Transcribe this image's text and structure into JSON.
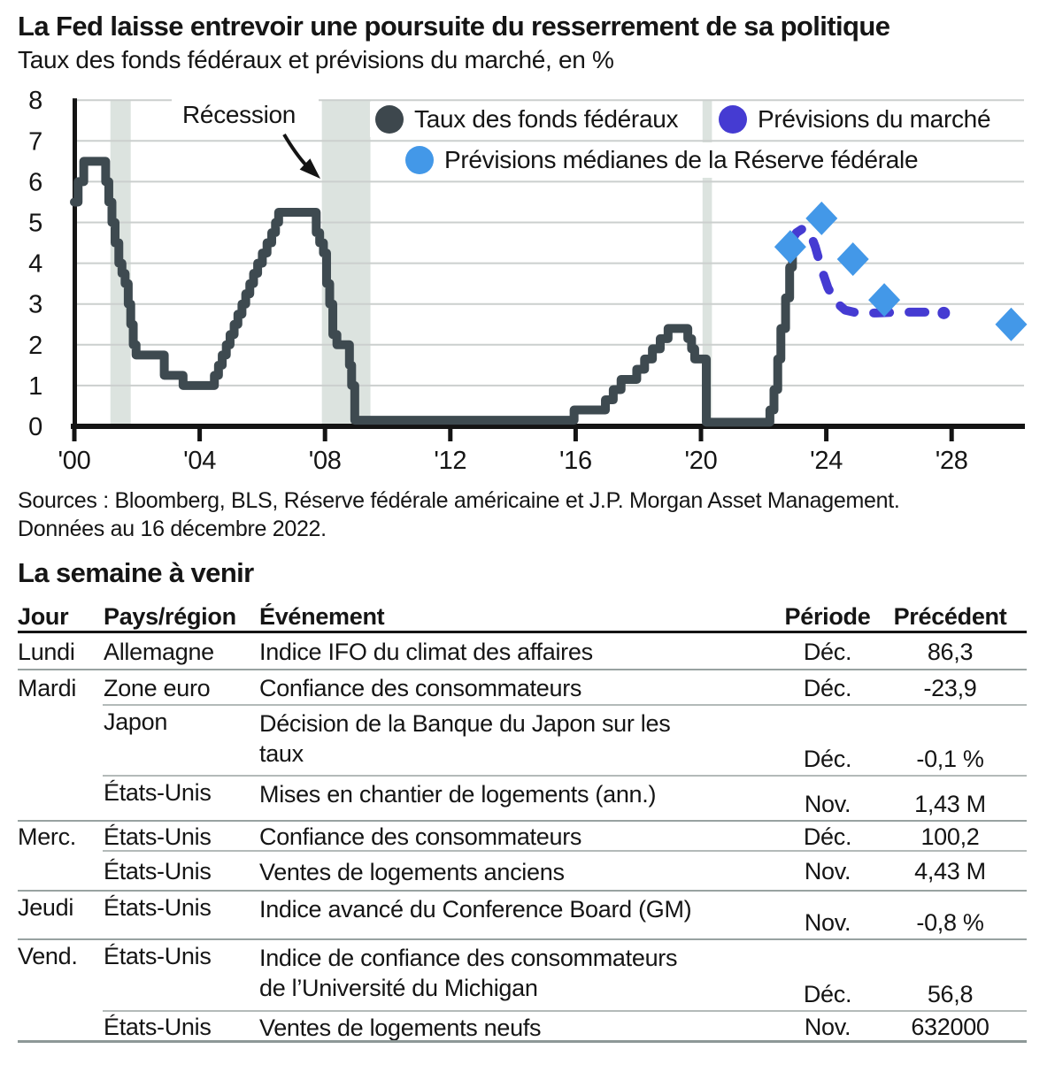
{
  "header": {
    "title": "La Fed laisse entrevoir une poursuite du resserrement de sa politique",
    "subtitle": "Taux des fonds fédéraux et prévisions du marché, en %"
  },
  "chart_data": {
    "type": "line",
    "title": "Taux des fonds fédéraux et prévisions du marché, en %",
    "ylabel": "%",
    "ylim": [
      0,
      8
    ],
    "yticks": [
      0,
      1,
      2,
      3,
      4,
      5,
      6,
      7,
      8
    ],
    "xticks": [
      2000,
      2004,
      2008,
      2012,
      2016,
      2020,
      2024,
      2028
    ],
    "xtick_labels": [
      "'00",
      "'04",
      "'08",
      "'12",
      "'16",
      "'20",
      "'24",
      "'28"
    ],
    "xlim": [
      2000,
      2030.5
    ],
    "grid": true,
    "legend_position": "top",
    "recession_label": "Récession",
    "recession_color": "#dce3df",
    "recessions": [
      [
        2001.15,
        2001.8
      ],
      [
        2007.9,
        2009.45
      ],
      [
        2020.05,
        2020.35
      ]
    ],
    "series": [
      {
        "name": "Taux des fonds fédéraux",
        "type": "step",
        "color": "#3e4a50",
        "points": [
          [
            2000.0,
            5.5
          ],
          [
            2000.12,
            6.0
          ],
          [
            2000.3,
            6.5
          ],
          [
            2001.0,
            6.0
          ],
          [
            2001.1,
            5.5
          ],
          [
            2001.2,
            5.0
          ],
          [
            2001.3,
            4.5
          ],
          [
            2001.42,
            4.0
          ],
          [
            2001.52,
            3.75
          ],
          [
            2001.62,
            3.5
          ],
          [
            2001.72,
            3.0
          ],
          [
            2001.8,
            2.5
          ],
          [
            2001.88,
            2.0
          ],
          [
            2001.97,
            1.75
          ],
          [
            2002.87,
            1.25
          ],
          [
            2003.47,
            1.0
          ],
          [
            2004.47,
            1.25
          ],
          [
            2004.6,
            1.5
          ],
          [
            2004.72,
            1.75
          ],
          [
            2004.85,
            2.0
          ],
          [
            2004.97,
            2.25
          ],
          [
            2005.1,
            2.5
          ],
          [
            2005.22,
            2.75
          ],
          [
            2005.35,
            3.0
          ],
          [
            2005.47,
            3.25
          ],
          [
            2005.6,
            3.5
          ],
          [
            2005.72,
            3.75
          ],
          [
            2005.85,
            4.0
          ],
          [
            2006.0,
            4.25
          ],
          [
            2006.15,
            4.5
          ],
          [
            2006.3,
            4.75
          ],
          [
            2006.42,
            5.0
          ],
          [
            2006.52,
            5.25
          ],
          [
            2007.72,
            4.75
          ],
          [
            2007.83,
            4.5
          ],
          [
            2007.95,
            4.25
          ],
          [
            2008.05,
            3.5
          ],
          [
            2008.15,
            3.0
          ],
          [
            2008.25,
            2.25
          ],
          [
            2008.38,
            2.0
          ],
          [
            2008.78,
            1.5
          ],
          [
            2008.85,
            1.0
          ],
          [
            2008.95,
            0.15
          ],
          [
            2015.95,
            0.4
          ],
          [
            2016.95,
            0.65
          ],
          [
            2017.2,
            0.9
          ],
          [
            2017.45,
            1.15
          ],
          [
            2017.95,
            1.4
          ],
          [
            2018.2,
            1.65
          ],
          [
            2018.45,
            1.9
          ],
          [
            2018.7,
            2.15
          ],
          [
            2018.95,
            2.4
          ],
          [
            2019.58,
            2.15
          ],
          [
            2019.7,
            1.9
          ],
          [
            2019.8,
            1.65
          ],
          [
            2020.17,
            0.1
          ],
          [
            2022.2,
            0.4
          ],
          [
            2022.33,
            0.9
          ],
          [
            2022.45,
            1.65
          ],
          [
            2022.55,
            2.4
          ],
          [
            2022.7,
            3.15
          ],
          [
            2022.83,
            3.9
          ],
          [
            2022.92,
            4.4
          ]
        ]
      },
      {
        "name": "Prévisions du marché",
        "type": "dashed",
        "color": "#453bd2",
        "points": [
          [
            2022.88,
            4.55
          ],
          [
            2023.05,
            4.75
          ],
          [
            2023.25,
            4.85
          ],
          [
            2023.45,
            4.8
          ],
          [
            2023.65,
            4.4
          ],
          [
            2023.85,
            3.85
          ],
          [
            2024.05,
            3.4
          ],
          [
            2024.3,
            3.05
          ],
          [
            2024.6,
            2.85
          ],
          [
            2025.0,
            2.78
          ],
          [
            2025.6,
            2.78
          ],
          [
            2026.3,
            2.8
          ],
          [
            2027.0,
            2.8
          ],
          [
            2027.55,
            2.8
          ]
        ],
        "end_dot": [
          2027.75,
          2.78
        ]
      },
      {
        "name": "Prévisions médianes de la Réserve fédérale",
        "type": "diamond",
        "color": "#4398e8",
        "points": [
          [
            2022.85,
            4.4
          ],
          [
            2023.85,
            5.1
          ],
          [
            2024.85,
            4.1
          ],
          [
            2025.85,
            3.1
          ],
          [
            2029.9,
            2.5
          ]
        ]
      }
    ]
  },
  "sources": {
    "line1": "Sources : Bloomberg, BLS, Réserve fédérale américaine et J.P. Morgan Asset Management.",
    "line2": "Données au 16 décembre 2022."
  },
  "week": {
    "title": "La semaine à venir",
    "headers": {
      "day": "Jour",
      "region": "Pays/région",
      "event": "Événement",
      "period": "Période",
      "previous": "Précédent"
    },
    "rows": [
      {
        "day": "Lundi",
        "region": "Allemagne",
        "event": "Indice IFO du climat des affaires",
        "period": "Déc.",
        "previous": "86,3"
      },
      {
        "day": "Mardi",
        "region": "Zone euro",
        "event": "Confiance des consommateurs",
        "period": "Déc.",
        "previous": "-23,9"
      },
      {
        "day": "",
        "region": "Japon",
        "event": "Décision de la Banque du Japon sur les\ntaux",
        "period": "Déc.",
        "previous": "-0,1 %"
      },
      {
        "day": "",
        "region": "États-Unis",
        "event": "Mises en chantier de logements (ann.)",
        "period": "Nov.",
        "previous": "1,43 M"
      },
      {
        "day": "Merc.",
        "region": "États-Unis",
        "event": "Confiance des consommateurs",
        "period": "Déc.",
        "previous": "100,2"
      },
      {
        "day": "",
        "region": "États-Unis",
        "event": "Ventes de logements anciens",
        "period": "Nov.",
        "previous": "4,43 M"
      },
      {
        "day": "Jeudi",
        "region": "États-Unis",
        "event": "Indice avancé du Conference Board (GM)",
        "period": "Nov.",
        "previous": "-0,8 %"
      },
      {
        "day": "Vend.",
        "region": "États-Unis",
        "event": "Indice de confiance des consommateurs\nde l’Université du Michigan",
        "period": "Déc.",
        "previous": "56,8"
      },
      {
        "day": "",
        "region": "États-Unis",
        "event": "Ventes de logements neufs",
        "period": "Nov.",
        "previous": "632000"
      }
    ]
  }
}
